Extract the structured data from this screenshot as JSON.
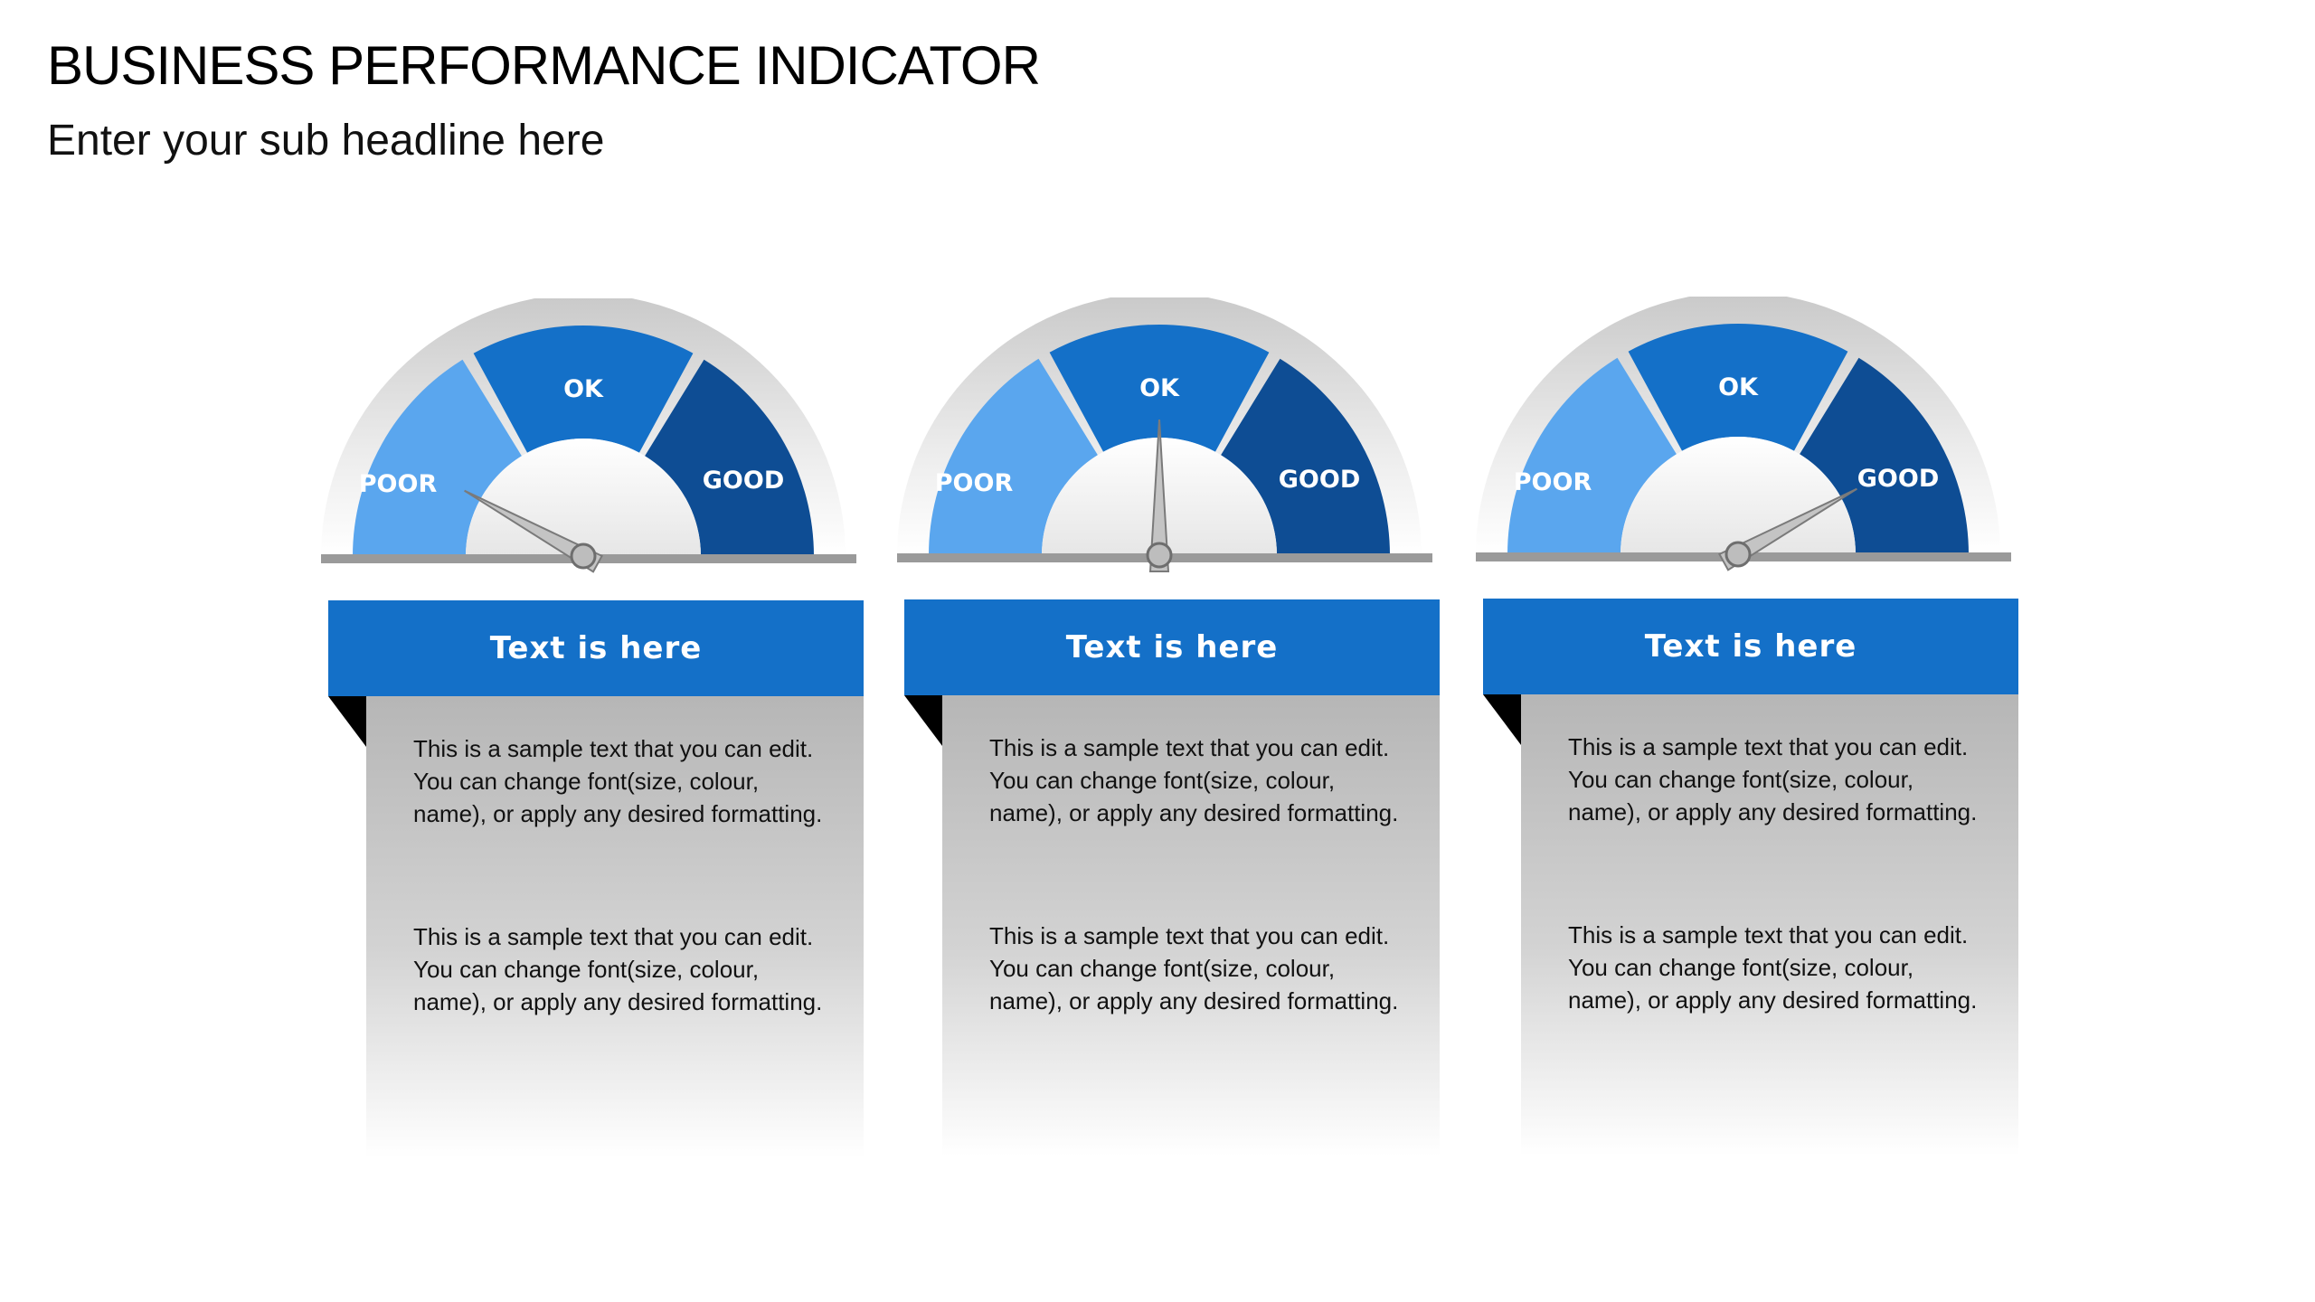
{
  "header": {
    "title": "BUSINESS PERFORMANCE INDICATOR",
    "subtitle": "Enter your sub headline here"
  },
  "colors": {
    "poor": "#5aa6ee",
    "ok": "#1470c8",
    "good": "#0e4d94",
    "banner": "#1470c8"
  },
  "cards": [
    {
      "labels": {
        "poor": "POOR",
        "ok": "OK",
        "good": "GOOD"
      },
      "needle_value": 0.16,
      "banner": "Text is here",
      "paragraphs": [
        "This is a sample text that you can edit. You can change font(size, colour, name), or apply any desired formatting.",
        "This is a sample text that you can edit. You can change font(size, colour, name), or apply any desired formatting."
      ]
    },
    {
      "labels": {
        "poor": "POOR",
        "ok": "OK",
        "good": "GOOD"
      },
      "needle_value": 0.5,
      "banner": "Text is here",
      "paragraphs": [
        "This is a sample text that you can edit. You can change font(size, colour, name), or apply any desired formatting.",
        "This is a sample text that you can edit. You can change font(size, colour, name), or apply any desired formatting."
      ]
    },
    {
      "labels": {
        "poor": "POOR",
        "ok": "OK",
        "good": "GOOD"
      },
      "needle_value": 0.84,
      "banner": "Text is here",
      "paragraphs": [
        "This is a sample text that you can edit. You can change font(size, colour, name), or apply any desired formatting.",
        "This is a sample text that you can edit. You can change font(size, colour, name), or apply any desired formatting."
      ]
    }
  ]
}
